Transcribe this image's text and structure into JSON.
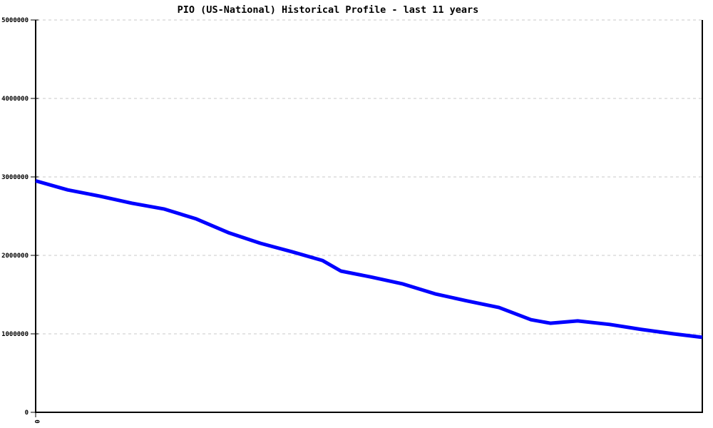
{
  "chart_data": {
    "type": "line",
    "title": "PIO (US-National) Historical Profile - last 11 years",
    "xlabel": "",
    "ylabel": "",
    "ylim": [
      0,
      5000000
    ],
    "yticks": [
      5000000,
      4000000,
      3000000,
      2000000,
      1000000,
      0
    ],
    "xtick_labels": [
      "0"
    ],
    "grid": "horizontal-dashed",
    "legend_position": "none",
    "colors": {
      "line": "#0000ff",
      "grid": "#c8c8c8",
      "axis": "#000000",
      "background": "#ffffff",
      "title": "#000000"
    },
    "series": [
      {
        "name": "PIO (US-National)",
        "color": "#0000ff",
        "x_is_fraction_of_span": true,
        "points": [
          [
            0.0,
            2950000
          ],
          [
            0.048,
            2835000
          ],
          [
            0.096,
            2755000
          ],
          [
            0.144,
            2665000
          ],
          [
            0.193,
            2590000
          ],
          [
            0.241,
            2465000
          ],
          [
            0.289,
            2290000
          ],
          [
            0.337,
            2155000
          ],
          [
            0.385,
            2045000
          ],
          [
            0.43,
            1935000
          ],
          [
            0.458,
            1800000
          ],
          [
            0.503,
            1725000
          ],
          [
            0.551,
            1635000
          ],
          [
            0.599,
            1510000
          ],
          [
            0.647,
            1420000
          ],
          [
            0.695,
            1335000
          ],
          [
            0.743,
            1180000
          ],
          [
            0.772,
            1135000
          ],
          [
            0.813,
            1165000
          ],
          [
            0.861,
            1120000
          ],
          [
            0.909,
            1055000
          ],
          [
            0.957,
            1000000
          ],
          [
            1.0,
            955000
          ]
        ]
      }
    ]
  }
}
